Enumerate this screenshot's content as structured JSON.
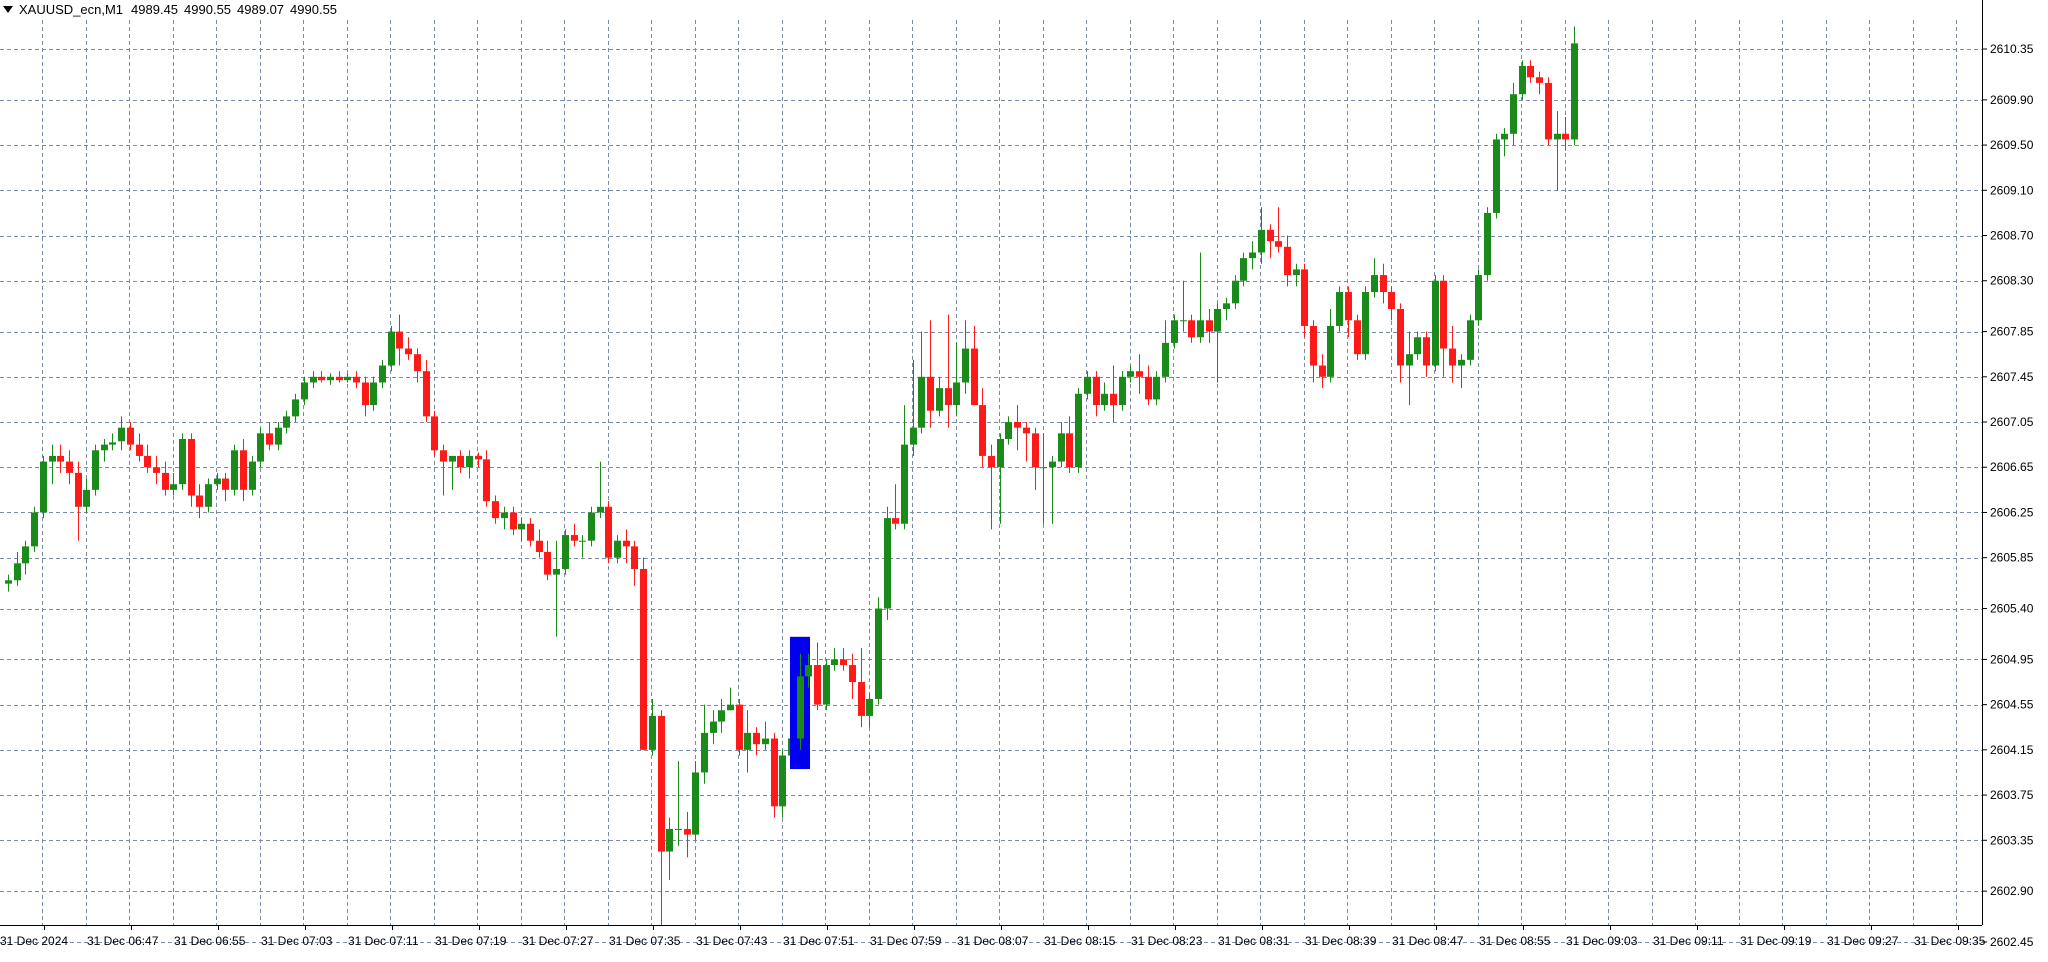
{
  "header": {
    "symbol": "XAUUSD_ecn,M1",
    "quotes": [
      "4989.45",
      "4990.55",
      "4989.07",
      "4990.55"
    ]
  },
  "colors": {
    "background": "#ffffff",
    "grid": "#7a8ca6",
    "bull": "#1a8a1a",
    "bear": "#ff1a1a",
    "highlight": "#0000ee",
    "axis": "#000000"
  },
  "chart_data": {
    "type": "candlestick",
    "price_axis_ticks": [
      "2610.35",
      "2609.90",
      "2609.50",
      "2609.10",
      "2608.70",
      "2608.30",
      "2607.85",
      "2607.45",
      "2607.05",
      "2606.65",
      "2606.25",
      "2605.85",
      "2605.40",
      "2604.95",
      "2604.55",
      "2604.15",
      "2603.75",
      "2603.35",
      "2602.90",
      "2602.45"
    ],
    "ylim": [
      2602.4,
      2610.75
    ],
    "time_axis_labels": [
      "31 Dec 2024",
      "31 Dec 06:47",
      "31 Dec 06:55",
      "31 Dec 07:03",
      "31 Dec 07:11",
      "31 Dec 07:19",
      "31 Dec 07:27",
      "31 Dec 07:35",
      "31 Dec 07:43",
      "31 Dec 07:51",
      "31 Dec 07:59",
      "31 Dec 08:07",
      "31 Dec 08:15",
      "31 Dec 08:23",
      "31 Dec 08:31",
      "31 Dec 08:39",
      "31 Dec 08:47",
      "31 Dec 08:55",
      "31 Dec 09:03",
      "31 Dec 09:11",
      "31 Dec 09:19",
      "31 Dec 09:27",
      "31 Dec 09:35"
    ],
    "highlighted_bar": 91,
    "candles": [
      [
        2605.62,
        2605.7,
        2605.55,
        2605.65
      ],
      [
        2605.65,
        2605.9,
        2605.6,
        2605.8
      ],
      [
        2605.8,
        2606.0,
        2605.7,
        2605.95
      ],
      [
        2605.95,
        2606.3,
        2605.9,
        2606.25
      ],
      [
        2606.25,
        2606.75,
        2606.2,
        2606.7
      ],
      [
        2606.7,
        2606.85,
        2606.5,
        2606.75
      ],
      [
        2606.75,
        2606.85,
        2606.6,
        2606.7
      ],
      [
        2606.7,
        2606.8,
        2606.5,
        2606.6
      ],
      [
        2606.6,
        2606.7,
        2606.0,
        2606.3
      ],
      [
        2606.3,
        2606.55,
        2606.25,
        2606.45
      ],
      [
        2606.45,
        2606.85,
        2606.4,
        2606.8
      ],
      [
        2606.8,
        2606.9,
        2606.7,
        2606.85
      ],
      [
        2606.85,
        2606.95,
        2606.8,
        2606.87
      ],
      [
        2606.88,
        2607.1,
        2606.8,
        2607.0
      ],
      [
        2607.0,
        2607.05,
        2606.8,
        2606.85
      ],
      [
        2606.85,
        2606.95,
        2606.7,
        2606.75
      ],
      [
        2606.75,
        2606.85,
        2606.6,
        2606.65
      ],
      [
        2606.65,
        2606.75,
        2606.5,
        2606.6
      ],
      [
        2606.6,
        2606.7,
        2606.4,
        2606.45
      ],
      [
        2606.45,
        2606.6,
        2606.4,
        2606.5
      ],
      [
        2606.5,
        2606.95,
        2606.45,
        2606.9
      ],
      [
        2606.9,
        2606.95,
        2606.3,
        2606.4
      ],
      [
        2606.4,
        2606.5,
        2606.2,
        2606.3
      ],
      [
        2606.3,
        2606.55,
        2606.25,
        2606.5
      ],
      [
        2606.5,
        2606.6,
        2606.45,
        2606.55
      ],
      [
        2606.55,
        2606.6,
        2606.35,
        2606.45
      ],
      [
        2606.45,
        2606.85,
        2606.4,
        2606.8
      ],
      [
        2606.8,
        2606.9,
        2606.35,
        2606.45
      ],
      [
        2606.45,
        2606.75,
        2606.4,
        2606.7
      ],
      [
        2606.7,
        2607.0,
        2606.65,
        2606.95
      ],
      [
        2606.95,
        2607.05,
        2606.8,
        2606.85
      ],
      [
        2606.85,
        2607.05,
        2606.8,
        2607.0
      ],
      [
        2607.0,
        2607.15,
        2606.95,
        2607.1
      ],
      [
        2607.1,
        2607.3,
        2607.05,
        2607.25
      ],
      [
        2607.25,
        2607.45,
        2607.2,
        2607.4
      ],
      [
        2607.4,
        2607.5,
        2607.35,
        2607.45
      ],
      [
        2607.45,
        2607.5,
        2607.4,
        2607.42
      ],
      [
        2607.42,
        2607.48,
        2607.38,
        2607.45
      ],
      [
        2607.45,
        2607.5,
        2607.4,
        2607.42
      ],
      [
        2607.42,
        2607.48,
        2607.4,
        2607.45
      ],
      [
        2607.45,
        2607.5,
        2607.35,
        2607.4
      ],
      [
        2607.4,
        2607.45,
        2607.1,
        2607.2
      ],
      [
        2607.2,
        2607.45,
        2607.15,
        2607.4
      ],
      [
        2607.4,
        2607.6,
        2607.35,
        2607.55
      ],
      [
        2607.55,
        2607.9,
        2607.5,
        2607.85
      ],
      [
        2607.85,
        2608.0,
        2607.55,
        2607.7
      ],
      [
        2607.7,
        2607.8,
        2607.6,
        2607.65
      ],
      [
        2607.65,
        2607.7,
        2607.4,
        2607.5
      ],
      [
        2607.5,
        2607.6,
        2607.05,
        2607.1
      ],
      [
        2607.1,
        2607.15,
        2606.75,
        2606.8
      ],
      [
        2606.8,
        2606.85,
        2606.4,
        2606.7
      ],
      [
        2606.7,
        2606.75,
        2606.45,
        2606.75
      ],
      [
        2606.75,
        2606.8,
        2606.6,
        2606.65
      ],
      [
        2606.65,
        2606.8,
        2606.55,
        2606.75
      ],
      [
        2606.75,
        2606.78,
        2606.65,
        2606.72
      ],
      [
        2606.72,
        2606.8,
        2606.3,
        2606.35
      ],
      [
        2606.35,
        2606.4,
        2606.15,
        2606.2
      ],
      [
        2606.2,
        2606.3,
        2606.1,
        2606.25
      ],
      [
        2606.25,
        2606.3,
        2606.05,
        2606.1
      ],
      [
        2606.1,
        2606.2,
        2606.0,
        2606.15
      ],
      [
        2606.15,
        2606.2,
        2605.95,
        2606.0
      ],
      [
        2606.0,
        2606.1,
        2605.85,
        2605.9
      ],
      [
        2605.9,
        2606.0,
        2605.65,
        2605.7
      ],
      [
        2605.7,
        2606.0,
        2605.15,
        2605.75
      ],
      [
        2605.75,
        2606.1,
        2605.7,
        2606.05
      ],
      [
        2606.05,
        2606.15,
        2605.95,
        2606.0
      ],
      [
        2606.0,
        2606.05,
        2605.85,
        2606.0
      ],
      [
        2606.0,
        2606.3,
        2605.95,
        2606.25
      ],
      [
        2606.25,
        2606.7,
        2606.2,
        2606.3
      ],
      [
        2606.3,
        2606.35,
        2605.8,
        2605.85
      ],
      [
        2605.85,
        2606.05,
        2605.8,
        2606.0
      ],
      [
        2606.0,
        2606.1,
        2605.8,
        2605.95
      ],
      [
        2605.95,
        2606.0,
        2605.6,
        2605.75
      ],
      [
        2605.75,
        2605.85,
        2604.15,
        2604.15
      ],
      [
        2604.15,
        2604.6,
        2604.1,
        2604.45
      ],
      [
        2604.45,
        2604.5,
        2602.6,
        2603.25
      ],
      [
        2603.25,
        2603.55,
        2603.0,
        2603.45
      ],
      [
        2603.45,
        2604.05,
        2603.3,
        2603.45
      ],
      [
        2603.45,
        2603.6,
        2603.2,
        2603.4
      ],
      [
        2603.4,
        2604.05,
        2603.35,
        2603.95
      ],
      [
        2603.95,
        2604.55,
        2603.85,
        2604.3
      ],
      [
        2604.3,
        2604.5,
        2604.2,
        2604.4
      ],
      [
        2604.4,
        2604.6,
        2604.3,
        2604.5
      ],
      [
        2604.5,
        2604.7,
        2604.5,
        2604.55
      ],
      [
        2604.55,
        2604.6,
        2604.1,
        2604.15
      ],
      [
        2604.15,
        2604.5,
        2603.95,
        2604.3
      ],
      [
        2604.3,
        2604.35,
        2604.1,
        2604.2
      ],
      [
        2604.2,
        2604.4,
        2604.15,
        2604.25
      ],
      [
        2604.25,
        2604.3,
        2603.55,
        2603.65
      ],
      [
        2603.65,
        2604.15,
        2603.55,
        2604.1
      ],
      [
        2604.1,
        2604.3,
        2604.05,
        2604.25
      ],
      [
        2604.25,
        2605.0,
        2604.15,
        2604.8
      ],
      [
        2604.8,
        2605.0,
        2604.7,
        2604.9
      ],
      [
        2604.9,
        2605.1,
        2604.5,
        2604.55
      ],
      [
        2604.55,
        2604.95,
        2604.5,
        2604.9
      ],
      [
        2604.9,
        2605.05,
        2604.85,
        2604.95
      ],
      [
        2604.95,
        2605.05,
        2604.85,
        2604.9
      ],
      [
        2604.9,
        2605.0,
        2604.6,
        2604.75
      ],
      [
        2604.75,
        2605.05,
        2604.35,
        2604.45
      ],
      [
        2604.45,
        2604.65,
        2604.35,
        2604.6
      ],
      [
        2604.6,
        2605.5,
        2604.55,
        2605.4
      ],
      [
        2605.4,
        2606.3,
        2605.3,
        2606.2
      ],
      [
        2606.2,
        2606.5,
        2606.1,
        2606.15
      ],
      [
        2606.15,
        2607.2,
        2606.1,
        2606.85
      ],
      [
        2606.85,
        2607.6,
        2606.75,
        2607.0
      ],
      [
        2607.0,
        2607.85,
        2606.95,
        2607.45
      ],
      [
        2607.45,
        2607.95,
        2607.0,
        2607.15
      ],
      [
        2607.15,
        2607.45,
        2607.1,
        2607.35
      ],
      [
        2607.35,
        2608.0,
        2607.0,
        2607.2
      ],
      [
        2607.2,
        2607.75,
        2607.1,
        2607.4
      ],
      [
        2607.4,
        2607.95,
        2607.3,
        2607.7
      ],
      [
        2607.7,
        2607.9,
        2607.2,
        2607.2
      ],
      [
        2607.2,
        2607.35,
        2606.65,
        2606.75
      ],
      [
        2606.75,
        2606.85,
        2606.1,
        2606.65
      ],
      [
        2606.65,
        2606.95,
        2606.15,
        2606.9
      ],
      [
        2606.9,
        2607.1,
        2606.85,
        2607.05
      ],
      [
        2607.05,
        2607.2,
        2606.8,
        2607.0
      ],
      [
        2607.0,
        2607.05,
        2606.7,
        2606.95
      ],
      [
        2606.95,
        2607.0,
        2606.45,
        2606.65
      ],
      [
        2606.65,
        2606.95,
        2606.15,
        2606.65
      ],
      [
        2606.65,
        2606.75,
        2606.15,
        2606.7
      ],
      [
        2606.7,
        2607.05,
        2606.65,
        2606.95
      ],
      [
        2606.95,
        2607.1,
        2606.6,
        2606.65
      ],
      [
        2606.65,
        2607.35,
        2606.6,
        2607.3
      ],
      [
        2607.3,
        2607.5,
        2607.25,
        2607.45
      ],
      [
        2607.45,
        2607.5,
        2607.1,
        2607.2
      ],
      [
        2607.2,
        2607.4,
        2607.15,
        2607.3
      ],
      [
        2607.3,
        2607.55,
        2607.05,
        2607.2
      ],
      [
        2607.2,
        2607.5,
        2607.15,
        2607.45
      ],
      [
        2607.45,
        2607.55,
        2607.4,
        2607.5
      ],
      [
        2607.5,
        2607.65,
        2607.3,
        2607.45
      ],
      [
        2607.45,
        2607.55,
        2607.2,
        2607.25
      ],
      [
        2607.25,
        2607.5,
        2607.2,
        2607.45
      ],
      [
        2607.45,
        2607.95,
        2607.4,
        2607.75
      ],
      [
        2607.75,
        2608.0,
        2607.7,
        2607.95
      ],
      [
        2607.95,
        2608.3,
        2607.85,
        2607.95
      ],
      [
        2607.95,
        2608.0,
        2607.75,
        2607.8
      ],
      [
        2607.8,
        2608.55,
        2607.75,
        2607.95
      ],
      [
        2607.95,
        2608.05,
        2607.75,
        2607.85
      ],
      [
        2607.85,
        2608.1,
        2607.4,
        2608.05
      ],
      [
        2608.05,
        2608.15,
        2607.95,
        2608.1
      ],
      [
        2608.1,
        2608.35,
        2608.05,
        2608.3
      ],
      [
        2608.3,
        2608.55,
        2608.25,
        2608.5
      ],
      [
        2608.5,
        2608.65,
        2608.4,
        2608.55
      ],
      [
        2608.55,
        2608.95,
        2608.45,
        2608.75
      ],
      [
        2608.75,
        2608.8,
        2608.5,
        2608.65
      ],
      [
        2608.65,
        2608.95,
        2608.55,
        2608.6
      ],
      [
        2608.6,
        2608.7,
        2608.25,
        2608.35
      ],
      [
        2608.35,
        2608.45,
        2608.25,
        2608.4
      ],
      [
        2608.4,
        2608.45,
        2607.8,
        2607.9
      ],
      [
        2607.9,
        2607.95,
        2607.4,
        2607.55
      ],
      [
        2607.55,
        2607.65,
        2607.35,
        2607.45
      ],
      [
        2607.45,
        2608.05,
        2607.4,
        2607.9
      ],
      [
        2607.9,
        2608.25,
        2607.85,
        2608.2
      ],
      [
        2608.2,
        2608.25,
        2607.8,
        2607.95
      ],
      [
        2607.95,
        2608.0,
        2607.6,
        2607.65
      ],
      [
        2607.65,
        2608.25,
        2607.6,
        2608.2
      ],
      [
        2608.2,
        2608.5,
        2608.15,
        2608.35
      ],
      [
        2608.35,
        2608.45,
        2608.1,
        2608.2
      ],
      [
        2608.2,
        2608.25,
        2607.95,
        2608.05
      ],
      [
        2608.05,
        2608.1,
        2607.4,
        2607.55
      ],
      [
        2607.55,
        2607.85,
        2607.2,
        2607.65
      ],
      [
        2607.65,
        2607.85,
        2607.6,
        2607.8
      ],
      [
        2607.8,
        2607.85,
        2607.45,
        2607.55
      ],
      [
        2607.55,
        2608.35,
        2607.5,
        2608.3
      ],
      [
        2608.3,
        2608.35,
        2607.45,
        2607.7
      ],
      [
        2607.7,
        2607.9,
        2607.4,
        2607.55
      ],
      [
        2607.55,
        2607.65,
        2607.35,
        2607.6
      ],
      [
        2607.6,
        2608.0,
        2607.55,
        2607.95
      ],
      [
        2607.95,
        2608.4,
        2607.9,
        2608.35
      ],
      [
        2608.35,
        2608.95,
        2608.3,
        2608.9
      ],
      [
        2608.9,
        2609.6,
        2608.85,
        2609.55
      ],
      [
        2609.55,
        2609.65,
        2609.4,
        2609.6
      ],
      [
        2609.6,
        2610.05,
        2609.5,
        2609.95
      ],
      [
        2609.95,
        2610.25,
        2609.9,
        2610.2
      ],
      [
        2610.2,
        2610.25,
        2610.05,
        2610.1
      ],
      [
        2610.1,
        2610.15,
        2609.95,
        2610.05
      ],
      [
        2610.05,
        2610.1,
        2609.5,
        2609.55
      ],
      [
        2609.55,
        2609.8,
        2609.1,
        2609.6
      ],
      [
        2609.6,
        2609.75,
        2609.45,
        2609.55
      ],
      [
        2609.55,
        2610.55,
        2609.5,
        2610.4
      ]
    ]
  }
}
